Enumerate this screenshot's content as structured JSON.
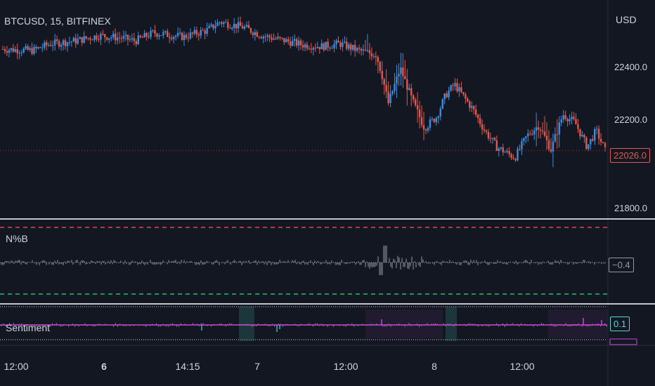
{
  "header": {
    "symbol_title": "BTCUSD, 15, BITFINEX"
  },
  "price_axis": {
    "currency": "USD",
    "ticks": [
      "22400.0",
      "22200.0",
      "21800.0"
    ],
    "last_price": "22026.0"
  },
  "indicators": {
    "npb": {
      "name": "N%B",
      "value": "−0.4"
    },
    "sentiment": {
      "name": "Sentiment",
      "value": "0.1"
    }
  },
  "time_axis": {
    "labels": [
      {
        "text": "12:00",
        "bold": false
      },
      {
        "text": "6",
        "bold": true
      },
      {
        "text": "14:15",
        "bold": false
      },
      {
        "text": "7",
        "bold": false
      },
      {
        "text": "12:00",
        "bold": false
      },
      {
        "text": "8",
        "bold": false
      },
      {
        "text": "12:00",
        "bold": false
      }
    ]
  },
  "colors": {
    "background": "#131722",
    "up": "#3b8fe0",
    "down": "#e0594f",
    "npb_line": "#9598a1",
    "upper_band": "#e0484e",
    "lower_band": "#22c55e",
    "sentiment": "#c04fd0",
    "sentiment_badge": "#5fd3d8",
    "grid_divider": "#ffffff"
  },
  "chart_data": {
    "type": "candlestick",
    "title": "BTCUSD, 15, BITFINEX",
    "ylabel": "USD",
    "ylim": [
      21780,
      22560
    ],
    "yticks": [
      22400,
      22200,
      21800
    ],
    "last_price": 22026,
    "close_path": [
      [
        0,
        22400
      ],
      [
        0.05,
        22395
      ],
      [
        0.08,
        22420
      ],
      [
        0.12,
        22430
      ],
      [
        0.16,
        22450
      ],
      [
        0.2,
        22440
      ],
      [
        0.22,
        22430
      ],
      [
        0.25,
        22460
      ],
      [
        0.3,
        22445
      ],
      [
        0.34,
        22470
      ],
      [
        0.36,
        22500
      ],
      [
        0.4,
        22480
      ],
      [
        0.43,
        22450
      ],
      [
        0.47,
        22430
      ],
      [
        0.5,
        22415
      ],
      [
        0.53,
        22410
      ],
      [
        0.56,
        22420
      ],
      [
        0.59,
        22395
      ],
      [
        0.62,
        22380
      ],
      [
        0.63,
        22300
      ],
      [
        0.64,
        22200
      ],
      [
        0.66,
        22330
      ],
      [
        0.68,
        22210
      ],
      [
        0.7,
        22110
      ],
      [
        0.72,
        22150
      ],
      [
        0.735,
        22230
      ],
      [
        0.75,
        22270
      ],
      [
        0.78,
        22180
      ],
      [
        0.8,
        22100
      ],
      [
        0.82,
        22040
      ],
      [
        0.85,
        22000
      ],
      [
        0.87,
        22080
      ],
      [
        0.89,
        22120
      ],
      [
        0.91,
        22030
      ],
      [
        0.93,
        22160
      ],
      [
        0.95,
        22130
      ],
      [
        0.97,
        22040
      ],
      [
        0.985,
        22100
      ],
      [
        1.0,
        22026
      ]
    ],
    "npb": {
      "upper_band": 1,
      "lower_band": -1,
      "last": -0.4
    },
    "sentiment": {
      "last": 0.1
    }
  }
}
